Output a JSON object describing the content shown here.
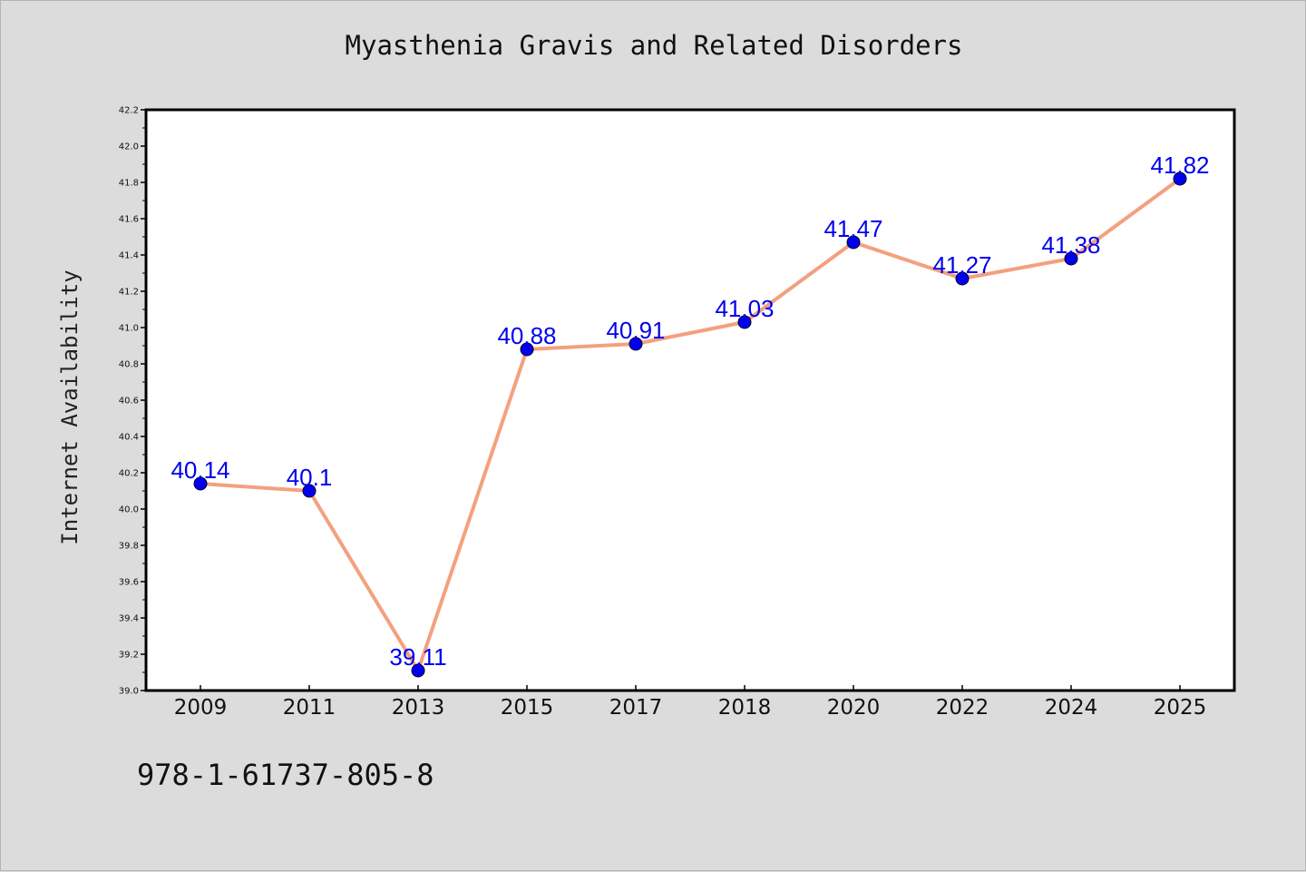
{
  "chart_data": {
    "type": "line",
    "title": "Myasthenia Gravis and Related Disorders",
    "xlabel": "",
    "ylabel": "Internet Availability",
    "categories": [
      "2009",
      "2011",
      "2013",
      "2015",
      "2017",
      "2018",
      "2020",
      "2022",
      "2024",
      "2025"
    ],
    "series": [
      {
        "values": [
          40.14,
          40.1,
          39.11,
          40.88,
          40.91,
          41.03,
          41.47,
          41.27,
          41.38,
          41.82
        ],
        "data_labels": [
          "40.14",
          "40.1",
          "39.11",
          "40.88",
          "40.91",
          "41.03",
          "41.47",
          "41.27",
          "41.38",
          "41.82"
        ],
        "line_color": "#f4a07f",
        "marker_color": "#0000ee"
      }
    ],
    "ylim": [
      39.0,
      42.2
    ],
    "yticks": [
      "39.0",
      "39.2",
      "39.4",
      "39.6",
      "39.8",
      "40.0",
      "40.2",
      "40.4",
      "40.6",
      "40.8",
      "41.0",
      "41.2",
      "41.4",
      "41.6",
      "41.8",
      "42.0",
      "42.2"
    ],
    "grid": false,
    "legend": "none"
  },
  "footer": {
    "code": "978-1-61737-805-8"
  },
  "colors": {
    "background": "#dcdcdc",
    "plot_background": "#ffffff",
    "label_text": "#0000ee"
  }
}
